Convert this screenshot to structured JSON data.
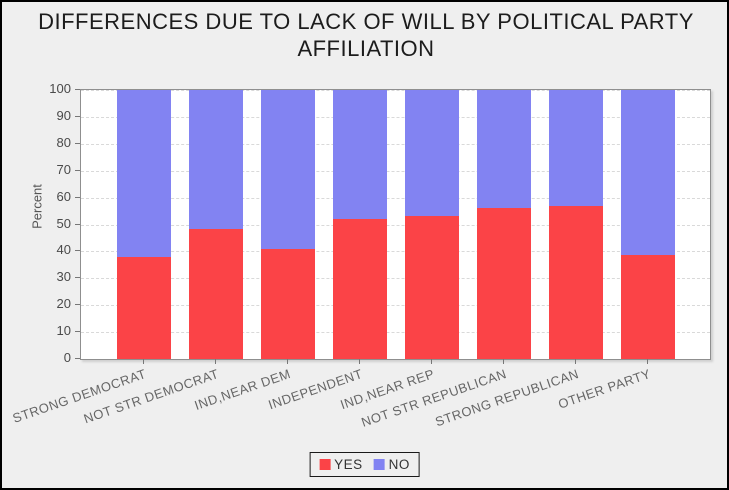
{
  "title": {
    "text": "DIFFERENCES DUE TO LACK OF WILL BY POLITICAL PARTY AFFILIATION"
  },
  "chart_data": {
    "type": "bar",
    "stacked": true,
    "title": "DIFFERENCES DUE TO LACK OF WILL BY POLITICAL PARTY AFFILIATION",
    "categories": [
      "STRONG DEMOCRAT",
      "NOT STR DEMOCRAT",
      "IND,NEAR DEM",
      "INDEPENDENT",
      "IND,NEAR REP",
      "NOT STR REPUBLICAN",
      "STRONG REPUBLICAN",
      "OTHER PARTY"
    ],
    "series": [
      {
        "name": "YES",
        "color": "#fb4347",
        "values": [
          38,
          48.5,
          41,
          52,
          53,
          56,
          57,
          38.5
        ]
      },
      {
        "name": "NO",
        "color": "#8283f2",
        "values": [
          62,
          51.5,
          59,
          48,
          47,
          44,
          43,
          61.5
        ]
      }
    ],
    "xlabel": "",
    "ylabel": "Percent",
    "ylim": [
      0,
      100
    ],
    "yticks": [
      0,
      10,
      20,
      30,
      40,
      50,
      60,
      70,
      80,
      90,
      100
    ],
    "grid": "horizontal-dashed",
    "legend_position": "bottom-center"
  },
  "colors": {
    "background": "#efefef",
    "plot_background": "#ffffff",
    "gridline": "#d9d9d9",
    "axis_text": "#4a4a4a",
    "category_text": "#666666"
  }
}
